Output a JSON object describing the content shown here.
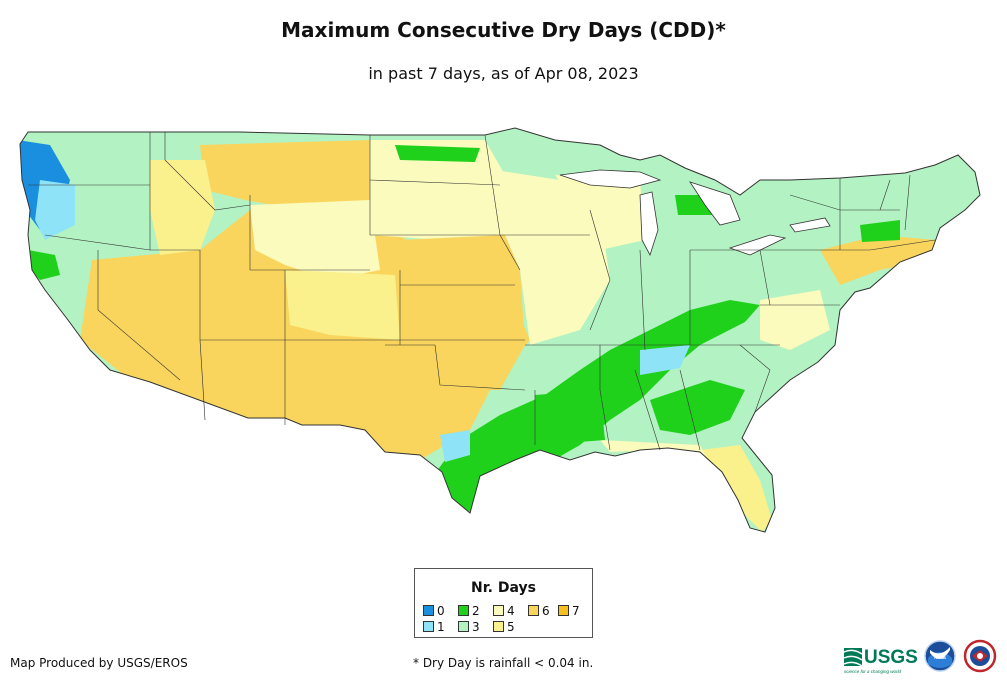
{
  "title": "Maximum Consecutive Dry Days (CDD)*",
  "subtitle": "in past 7 days, as of Apr 08, 2023",
  "legend": {
    "title": "Nr. Days",
    "items": [
      {
        "label": "0",
        "color": "#1a8fe0"
      },
      {
        "label": "1",
        "color": "#8fe3f7"
      },
      {
        "label": "2",
        "color": "#1fd11a"
      },
      {
        "label": "3",
        "color": "#b3f2c2"
      },
      {
        "label": "4",
        "color": "#fbfbbd"
      },
      {
        "label": "5",
        "color": "#faf08c"
      },
      {
        "label": "6",
        "color": "#f9d55d"
      },
      {
        "label": "7",
        "color": "#f7bf22"
      }
    ]
  },
  "credit": "Map Produced by USGS/EROS",
  "footnote": "* Dry Day is rainfall < 0.04 in.",
  "logos": {
    "usgs": "USGS",
    "usgs_tagline": "science for a changing world",
    "noaa": "noaa"
  }
}
